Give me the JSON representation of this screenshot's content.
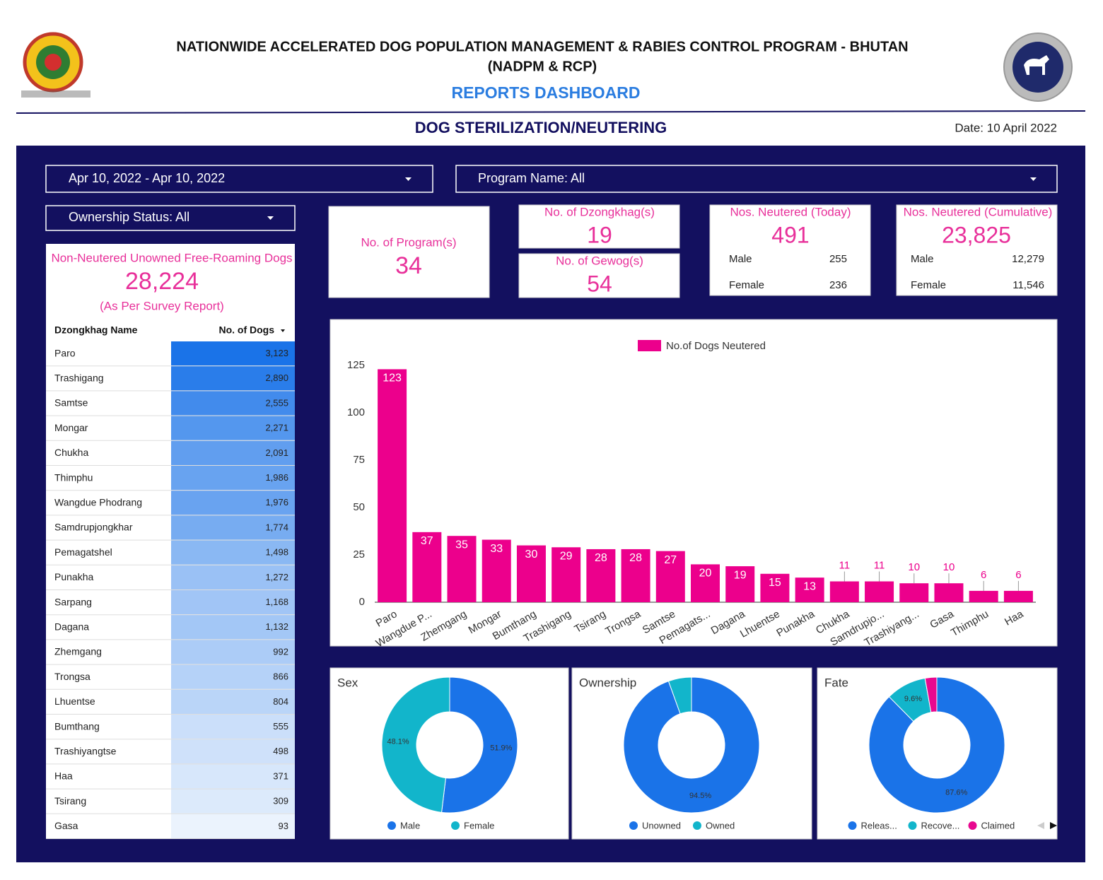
{
  "header": {
    "title_line1": "NATIONWIDE ACCELERATED DOG POPULATION MANAGEMENT & RABIES CONTROL PROGRAM - BHUTAN",
    "title_line2": "(NADPM & RCP)",
    "subtitle": "REPORTS DASHBOARD",
    "section_title": "DOG STERILIZATION/NEUTERING",
    "date": "Date: 10 April 2022"
  },
  "filters": {
    "date_range": "Apr 10, 2022 - Apr 10, 2022",
    "program": "Program Name: All",
    "ownership": "Ownership Status: All"
  },
  "kpis": {
    "programs": {
      "label": "No. of Program(s)",
      "value": "34"
    },
    "dzongkhags": {
      "label": "No. of Dzongkhag(s)",
      "value": "19"
    },
    "gewogs": {
      "label": "No. of Gewog(s)",
      "value": "54"
    },
    "today": {
      "label": "Nos. Neutered (Today)",
      "value": "491",
      "male_label": "Male",
      "male": "255",
      "female_label": "Female",
      "female": "236"
    },
    "cumulative": {
      "label": "Nos. Neutered (Cumulative)",
      "value": "23,825",
      "male_label": "Male",
      "male": "12,279",
      "female_label": "Female",
      "female": "11,546"
    }
  },
  "table": {
    "title": "Non-Neutered Unowned Free-Roaming Dogs",
    "total": "28,224",
    "note": "(As Per Survey Report)",
    "headers": [
      "Dzongkhag Name",
      "No. of Dogs"
    ],
    "color": "#1a73e8",
    "rows": [
      {
        "name": "Paro",
        "value": 3123,
        "label": "3,123"
      },
      {
        "name": "Trashigang",
        "value": 2890,
        "label": "2,890"
      },
      {
        "name": "Samtse",
        "value": 2555,
        "label": "2,555"
      },
      {
        "name": "Mongar",
        "value": 2271,
        "label": "2,271"
      },
      {
        "name": "Chukha",
        "value": 2091,
        "label": "2,091"
      },
      {
        "name": "Thimphu",
        "value": 1986,
        "label": "1,986"
      },
      {
        "name": "Wangdue Phodrang",
        "value": 1976,
        "label": "1,976"
      },
      {
        "name": "Samdrupjongkhar",
        "value": 1774,
        "label": "1,774"
      },
      {
        "name": "Pemagatshel",
        "value": 1498,
        "label": "1,498"
      },
      {
        "name": "Punakha",
        "value": 1272,
        "label": "1,272"
      },
      {
        "name": "Sarpang",
        "value": 1168,
        "label": "1,168"
      },
      {
        "name": "Dagana",
        "value": 1132,
        "label": "1,132"
      },
      {
        "name": "Zhemgang",
        "value": 992,
        "label": "992"
      },
      {
        "name": "Trongsa",
        "value": 866,
        "label": "866"
      },
      {
        "name": "Lhuentse",
        "value": 804,
        "label": "804"
      },
      {
        "name": "Bumthang",
        "value": 555,
        "label": "555"
      },
      {
        "name": "Trashiyangtse",
        "value": 498,
        "label": "498"
      },
      {
        "name": "Haa",
        "value": 371,
        "label": "371"
      },
      {
        "name": "Tsirang",
        "value": 309,
        "label": "309"
      },
      {
        "name": "Gasa",
        "value": 93,
        "label": "93"
      }
    ]
  },
  "chart_data": [
    {
      "type": "bar",
      "categories": [
        "Paro",
        "Wangdue P...",
        "Zhemgang",
        "Mongar",
        "Bumthang",
        "Trashigang",
        "Tsirang",
        "Trongsa",
        "Samtse",
        "Pemagats...",
        "Dagana",
        "Lhuentse",
        "Punakha",
        "Chukha",
        "Samdrupjo...",
        "Trashiyang...",
        "Gasa",
        "Thimphu",
        "Haa"
      ],
      "series": [
        {
          "name": "No.of Dogs Neutered",
          "color": "#ec008c",
          "values": [
            123,
            37,
            35,
            33,
            30,
            29,
            28,
            28,
            27,
            20,
            19,
            15,
            13,
            11,
            11,
            10,
            10,
            6,
            6
          ]
        }
      ],
      "ylim": [
        0,
        125
      ],
      "yticks": [
        0,
        25,
        50,
        75,
        100,
        125
      ],
      "legend": "top"
    },
    {
      "type": "pie",
      "title": "Sex",
      "categories": [
        "Male",
        "Female"
      ],
      "values": [
        51.9,
        48.1
      ],
      "value_labels": [
        "51.9%",
        "48.1%"
      ],
      "colors": [
        "#1a73e8",
        "#12b5cb"
      ]
    },
    {
      "type": "pie",
      "title": "Ownership",
      "categories": [
        "Unowned",
        "Owned"
      ],
      "values": [
        94.5,
        5.5
      ],
      "value_labels": [
        "94.5%",
        null
      ],
      "colors": [
        "#1a73e8",
        "#12b5cb"
      ]
    },
    {
      "type": "pie",
      "title": "Fate",
      "categories": [
        "Releas...",
        "Recove...",
        "Claimed"
      ],
      "values": [
        87.6,
        9.6,
        2.8
      ],
      "value_labels": [
        "87.6%",
        "9.6%",
        null
      ],
      "colors": [
        "#1a73e8",
        "#12b5cb",
        "#e8088f"
      ]
    }
  ]
}
